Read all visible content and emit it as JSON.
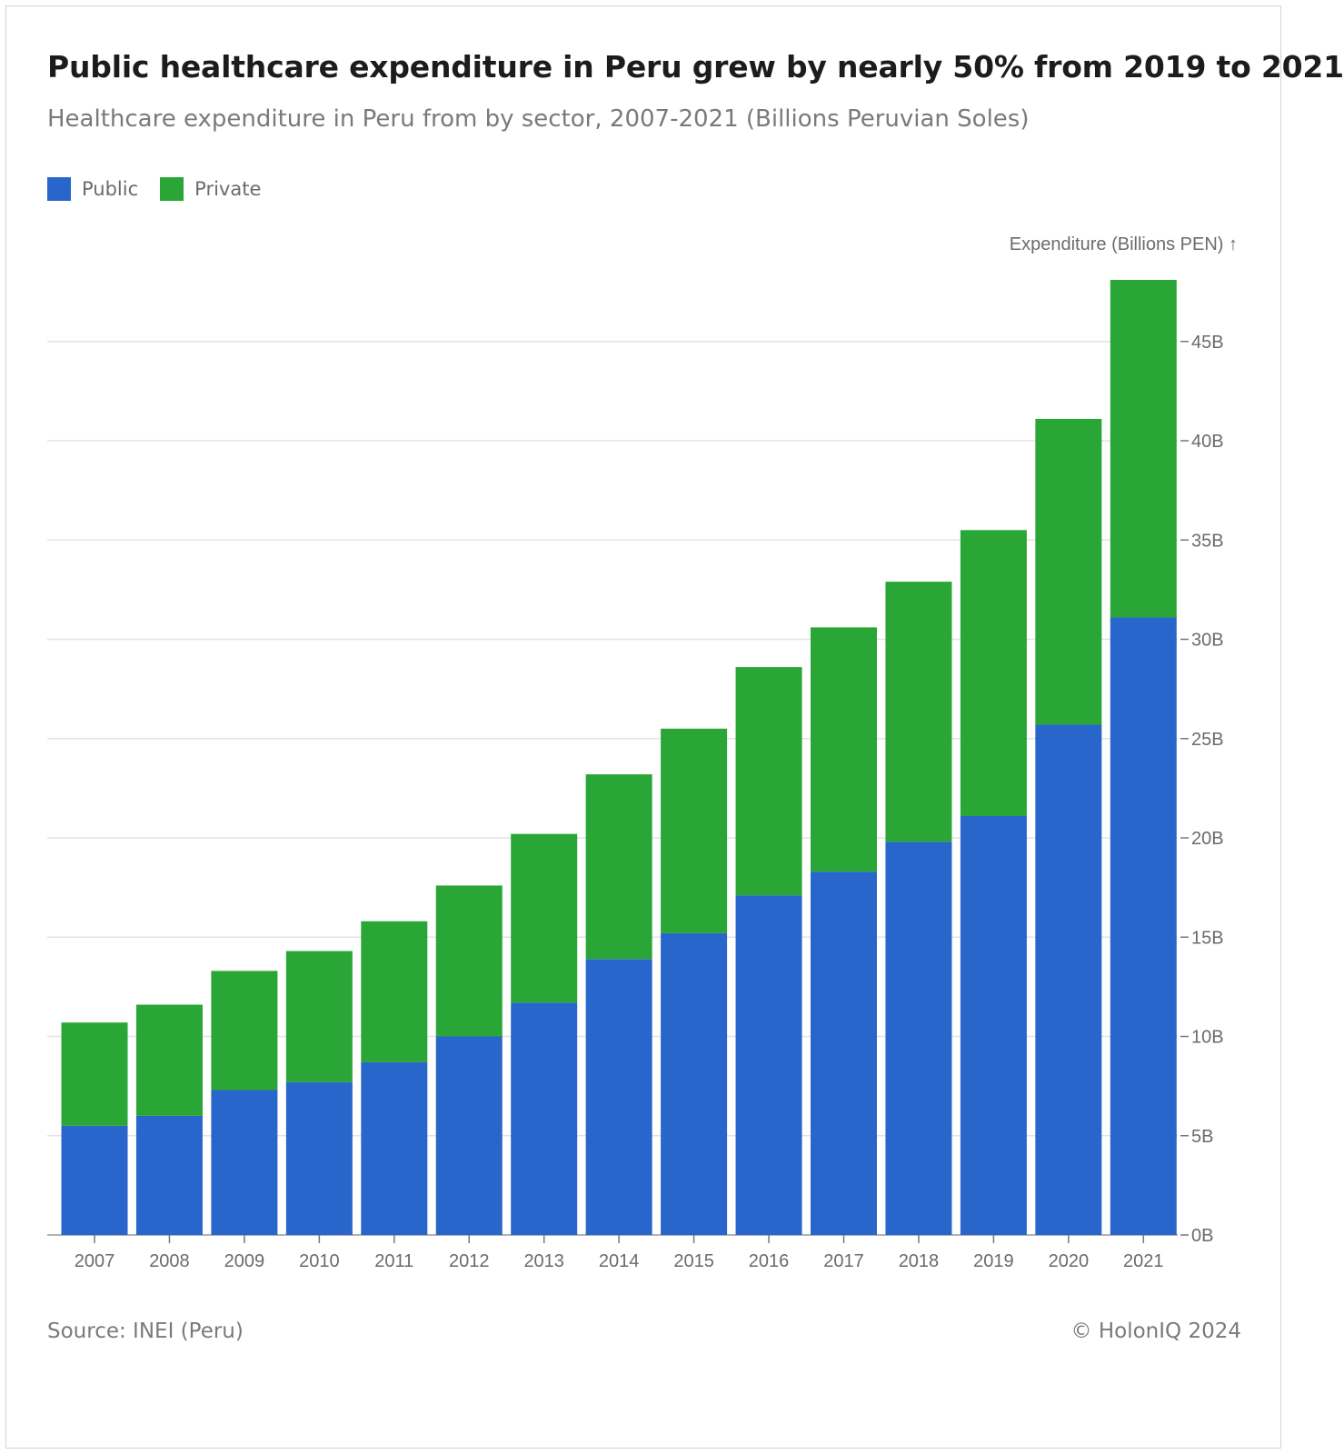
{
  "title": "Public healthcare expenditure in Peru grew by nearly 50% from 2019 to 2021",
  "subtitle": "Healthcare expenditure in Peru from by sector, 2007-2021 (Billions Peruvian Soles)",
  "legend": {
    "items": [
      {
        "label": "Public",
        "color": "#2966cc"
      },
      {
        "label": "Private",
        "color": "#2aa636"
      }
    ]
  },
  "footer": {
    "source": "Source: INEI (Peru)",
    "copyright": "© HolonIQ 2024"
  },
  "chart_data": {
    "type": "bar",
    "stacked": true,
    "categories": [
      "2007",
      "2008",
      "2009",
      "2010",
      "2011",
      "2012",
      "2013",
      "2014",
      "2015",
      "2016",
      "2017",
      "2018",
      "2019",
      "2020",
      "2021"
    ],
    "series": [
      {
        "name": "Public",
        "color": "#2966cc",
        "values": [
          5.5,
          6.0,
          7.3,
          7.7,
          8.7,
          10.0,
          11.7,
          13.9,
          15.2,
          17.1,
          18.3,
          19.8,
          21.1,
          25.7,
          31.1
        ]
      },
      {
        "name": "Private",
        "color": "#2aa636",
        "values": [
          5.2,
          5.6,
          6.0,
          6.6,
          7.1,
          7.6,
          8.5,
          9.3,
          10.3,
          11.5,
          12.3,
          13.1,
          14.4,
          15.4,
          17.0
        ]
      }
    ],
    "ylabel": "Expenditure (Billions PEN) ↑",
    "y_ticks": [
      "0B",
      "5B",
      "10B",
      "15B",
      "20B",
      "25B",
      "30B",
      "35B",
      "40B",
      "45B"
    ],
    "ylim": [
      0,
      48
    ],
    "y_axis_position": "right",
    "grid": true
  }
}
